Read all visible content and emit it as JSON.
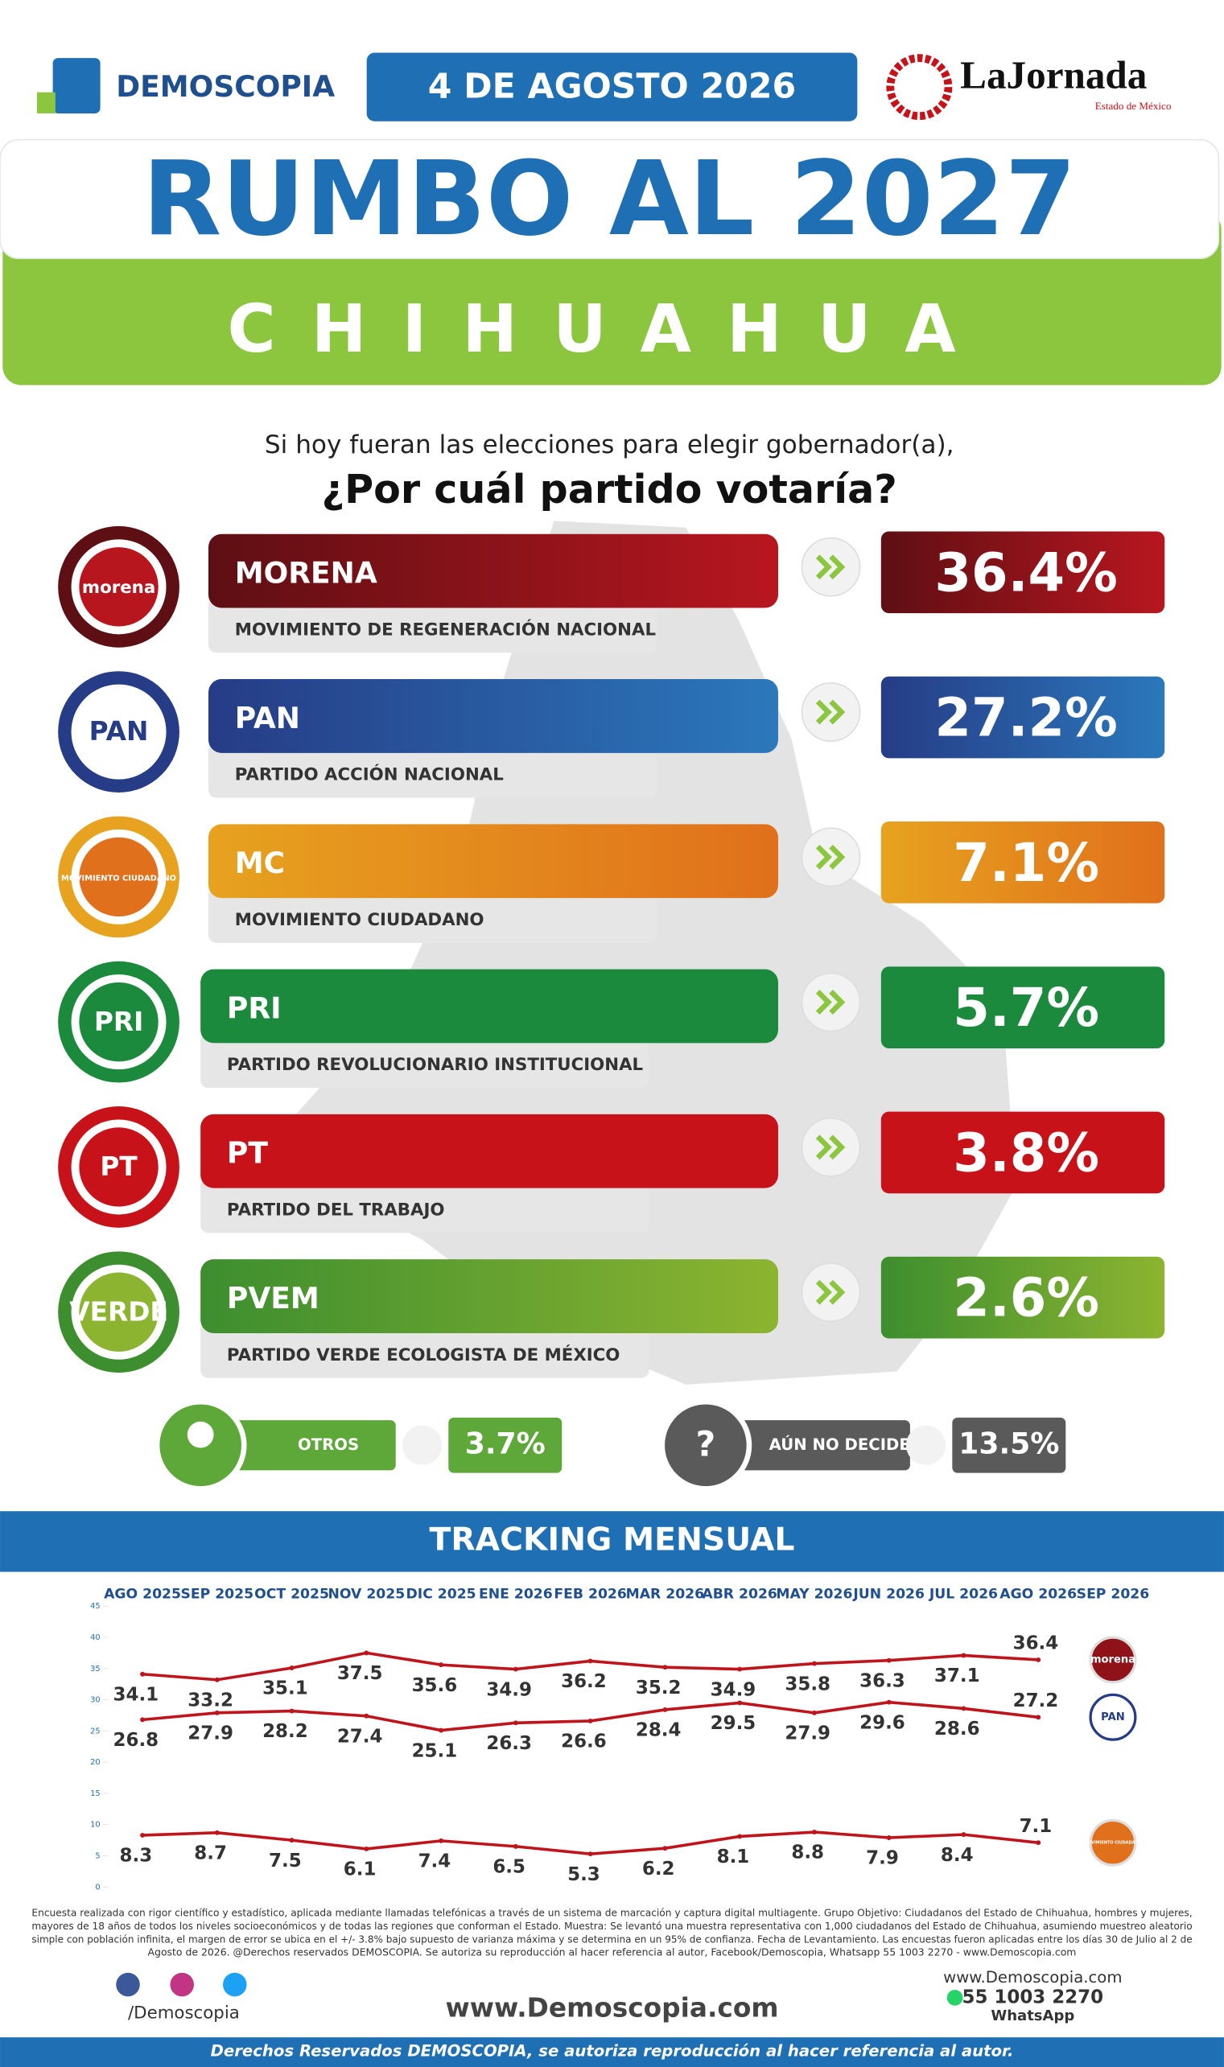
{
  "header": {
    "brand": "DEMOSCOPIA",
    "date": "4 DE AGOSTO 2026",
    "partner": "LaJornada",
    "partner_sub": "Estado de México"
  },
  "title": "RUMBO AL 2027",
  "state": "CHIHUAHUA",
  "question": {
    "line1": "Si hoy fueran las elecciones para elegir gobernador(a),",
    "line2": "¿Por cuál partido votaría?"
  },
  "parties": [
    {
      "logo": "morena",
      "name": "MORENA",
      "full": "MOVIMIENTO DE REGENERACIÓN NACIONAL",
      "value": "36.4%",
      "colors": [
        "#5e0f14",
        "#b8161f"
      ]
    },
    {
      "logo": "PAN",
      "name": "PAN",
      "full": "PARTIDO ACCIÓN NACIONAL",
      "value": "27.2%",
      "colors": [
        "#263c86",
        "#2b78bb"
      ]
    },
    {
      "logo": "MOVIMIENTO CIUDADANO",
      "name": "MC",
      "full": "MOVIMIENTO CIUDADANO",
      "value": "7.1%",
      "colors": [
        "#e7a21f",
        "#e0701b"
      ]
    },
    {
      "logo": "PRI",
      "name": "PRI",
      "full": "PARTIDO REVOLUCIONARIO INSTITUCIONAL",
      "value": "5.7%",
      "colors": [
        "#1c8a3c",
        "#1c8a3c"
      ]
    },
    {
      "logo": "PT",
      "name": "PT",
      "full": "PARTIDO DEL TRABAJO",
      "value": "3.8%",
      "colors": [
        "#c8121a",
        "#c8121a"
      ]
    },
    {
      "logo": "VERDE",
      "name": "PVEM",
      "full": "PARTIDO VERDE ECOLOGISTA DE MÉXICO",
      "value": "2.6%",
      "colors": [
        "#3d8e2f",
        "#8cb430"
      ]
    }
  ],
  "others": {
    "label": "OTROS",
    "value": "3.7%"
  },
  "undecided": {
    "icon": "?",
    "label": "AÚN NO DECIDE",
    "value": "13.5%"
  },
  "chart_data": {
    "type": "line",
    "title": "TRACKING MENSUAL",
    "categories": [
      "AGO 2025",
      "SEP 2025",
      "OCT 2025",
      "NOV 2025",
      "DIC 2025",
      "ENE 2026",
      "FEB 2026",
      "MAR 2026",
      "ABR 2026",
      "MAY 2026",
      "JUN 2026",
      "JUL 2026",
      "AGO 2026",
      "SEP 2026"
    ],
    "series": [
      {
        "name": "morena",
        "color": "#c0141c",
        "values": [
          34.1,
          33.2,
          35.1,
          37.5,
          35.6,
          34.9,
          36.2,
          35.2,
          34.9,
          35.8,
          36.3,
          37.1,
          36.4,
          null
        ]
      },
      {
        "name": "PAN",
        "color": "#c0141c",
        "values": [
          26.8,
          27.9,
          28.2,
          27.4,
          25.1,
          26.3,
          26.6,
          28.4,
          29.5,
          27.9,
          29.6,
          28.6,
          27.2,
          null
        ]
      },
      {
        "name": "MOVIMIENTO CIUDADANO",
        "color": "#c0141c",
        "values": [
          8.3,
          8.7,
          7.5,
          6.1,
          7.4,
          6.5,
          5.3,
          6.2,
          8.1,
          8.8,
          7.9,
          8.4,
          7.1,
          null
        ]
      }
    ],
    "ylim": [
      0,
      45
    ],
    "yticks": [
      0,
      5,
      10,
      15,
      20,
      25,
      30,
      35,
      40,
      45
    ],
    "grid": false
  },
  "footer": {
    "disclaimer": [
      "Encuesta realizada con rigor científico y estadístico, aplicada mediante llamadas telefónicas a través de un sistema de marcación y captura digital multiagente. Grupo Objetivo: Ciudadanos del Estado de Chihuahua, hombres y mujeres,",
      "mayores de 18 años de todos los niveles socioeconómicos y de todas las regiones que conforman el Estado. Muestra: Se levantó una muestra representativa con 1,000 ciudadanos del Estado de Chihuahua, asumiendo muestreo aleatorio",
      "simple con población infinita, el margen de error se ubica en el +/- 3.8% bajo supuesto de varianza máxima y se determina en un 95% de confianza. Fecha de Levantamiento. Las encuestas fueron aplicadas entre los días 30 de Julio al 2 de",
      "Agosto de 2026. @Derechos reservados DEMOSCOPIA. Se autoriza su reproducción al hacer referencia al autor, Facebook/Demoscopia, Whatsapp 55 1003 2270 - www.Demoscopia.com"
    ],
    "social": "/Demoscopia",
    "website": "www.Demoscopia.com",
    "contact_site": "www.Demoscopia.com",
    "phone": "55 1003 2270",
    "whatsapp": "WhatsApp",
    "rights": "Derechos Reservados DEMOSCOPIA, se autoriza reproducción al hacer referencia al autor."
  }
}
